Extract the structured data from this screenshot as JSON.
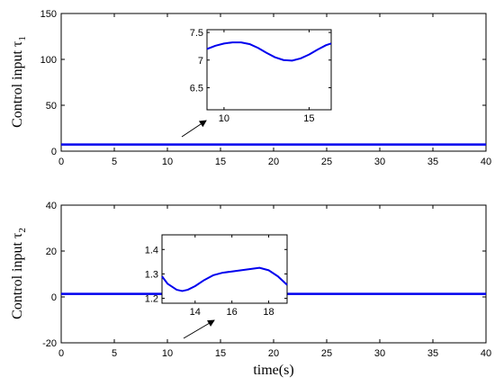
{
  "colors": {
    "line": "#0000ee",
    "axis": "#000000",
    "background": "#ffffff"
  },
  "chart_data": [
    {
      "type": "line",
      "ylabel": "Control input τ",
      "ylabel_subscript": "1",
      "xlabel": "",
      "xlim": [
        0,
        40
      ],
      "ylim": [
        0,
        150
      ],
      "xticks": [
        "0",
        "5",
        "10",
        "15",
        "20",
        "25",
        "30",
        "35",
        "40"
      ],
      "yticks": [
        "0",
        "50",
        "100",
        "150"
      ],
      "grid": false,
      "series": [
        {
          "x": [
            0,
            40
          ],
          "y": [
            7.2,
            7.2
          ]
        }
      ],
      "inset": {
        "xlim": [
          9,
          16.3
        ],
        "ylim": [
          6.1,
          7.55
        ],
        "xticks": [
          "10",
          "15"
        ],
        "yticks": [
          "6.5",
          "7",
          "7.5"
        ],
        "x": [
          9,
          9.5,
          10,
          10.5,
          11,
          11.5,
          12,
          12.5,
          13,
          13.5,
          14,
          14.5,
          15,
          15.5,
          16,
          16.3
        ],
        "y": [
          7.2,
          7.26,
          7.3,
          7.32,
          7.32,
          7.29,
          7.22,
          7.13,
          7.05,
          7.0,
          6.99,
          7.03,
          7.1,
          7.19,
          7.27,
          7.3
        ]
      }
    },
    {
      "type": "line",
      "ylabel": "Control input τ",
      "ylabel_subscript": "2",
      "xlabel": "time(s)",
      "xlim": [
        0,
        40
      ],
      "ylim": [
        -20,
        40
      ],
      "xticks": [
        "0",
        "5",
        "10",
        "15",
        "20",
        "25",
        "30",
        "35",
        "40"
      ],
      "yticks": [
        "-20",
        "0",
        "20",
        "40"
      ],
      "grid": false,
      "series": [
        {
          "x": [
            0,
            40
          ],
          "y": [
            1.3,
            1.3
          ]
        }
      ],
      "inset": {
        "xlim": [
          12.2,
          19
        ],
        "ylim": [
          1.18,
          1.46
        ],
        "xticks": [
          "14",
          "16",
          "18"
        ],
        "yticks": [
          "1.2",
          "1.3",
          "1.4"
        ],
        "x": [
          12.2,
          12.5,
          13,
          13.3,
          13.6,
          14,
          14.5,
          15,
          15.5,
          16,
          16.5,
          17,
          17.5,
          18,
          18.5,
          19
        ],
        "y": [
          1.29,
          1.26,
          1.235,
          1.23,
          1.235,
          1.25,
          1.275,
          1.295,
          1.305,
          1.31,
          1.315,
          1.32,
          1.325,
          1.315,
          1.29,
          1.255
        ]
      }
    }
  ]
}
